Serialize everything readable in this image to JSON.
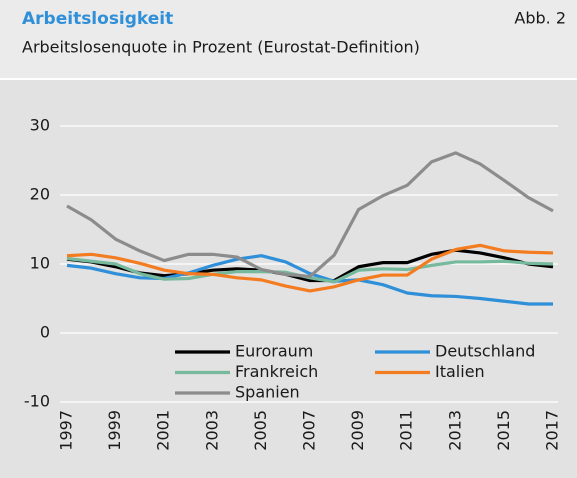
{
  "chart_data": {
    "type": "line",
    "title": "Arbeitslosigkeit",
    "figure_label": "Abb. 2",
    "subtitle": "Arbeitslosenquote in Prozent (Eurostat-Definition)",
    "x": [
      1997,
      1998,
      1999,
      2000,
      2001,
      2002,
      2003,
      2004,
      2005,
      2006,
      2007,
      2008,
      2009,
      2010,
      2011,
      2012,
      2013,
      2014,
      2015,
      2016,
      2017
    ],
    "xlim": [
      1997,
      2017
    ],
    "xticks": [
      1997,
      1999,
      2001,
      2003,
      2005,
      2007,
      2009,
      2011,
      2013,
      2015,
      2017
    ],
    "ylim": [
      -10,
      30
    ],
    "yticks": [
      -10,
      0,
      10,
      20,
      30
    ],
    "grid": true,
    "legend": "lower center",
    "series": [
      {
        "name": "Euroraum",
        "color": "#000000",
        "values": [
          10.7,
          10.3,
          9.6,
          8.7,
          8.3,
          8.6,
          9.1,
          9.3,
          9.1,
          8.5,
          7.6,
          7.6,
          9.6,
          10.2,
          10.2,
          11.4,
          12.0,
          11.6,
          10.9,
          10.0,
          9.6
        ]
      },
      {
        "name": "Deutschland",
        "color": "#2f8fd8",
        "values": [
          9.8,
          9.4,
          8.6,
          8.0,
          7.9,
          8.7,
          9.8,
          10.7,
          11.2,
          10.3,
          8.6,
          7.5,
          7.7,
          7.0,
          5.8,
          5.4,
          5.3,
          5.0,
          4.6,
          4.2,
          4.2
        ]
      },
      {
        "name": "Frankreich",
        "color": "#76b99c",
        "values": [
          10.8,
          10.4,
          10.0,
          8.6,
          7.8,
          7.9,
          8.5,
          8.9,
          8.9,
          8.8,
          8.0,
          7.4,
          9.1,
          9.3,
          9.2,
          9.8,
          10.3,
          10.3,
          10.4,
          10.1,
          10.0
        ]
      },
      {
        "name": "Italien",
        "color": "#f47c20",
        "values": [
          11.2,
          11.4,
          10.9,
          10.1,
          9.1,
          8.6,
          8.5,
          8.0,
          7.7,
          6.8,
          6.1,
          6.7,
          7.7,
          8.4,
          8.4,
          10.7,
          12.1,
          12.7,
          11.9,
          11.7,
          11.6
        ]
      },
      {
        "name": "Spanien",
        "color": "#8c8c8c",
        "values": [
          18.4,
          16.4,
          13.6,
          11.9,
          10.5,
          11.4,
          11.4,
          11.0,
          9.2,
          8.5,
          8.2,
          11.3,
          17.9,
          19.9,
          21.4,
          24.8,
          26.1,
          24.5,
          22.1,
          19.6,
          17.7
        ]
      }
    ]
  }
}
